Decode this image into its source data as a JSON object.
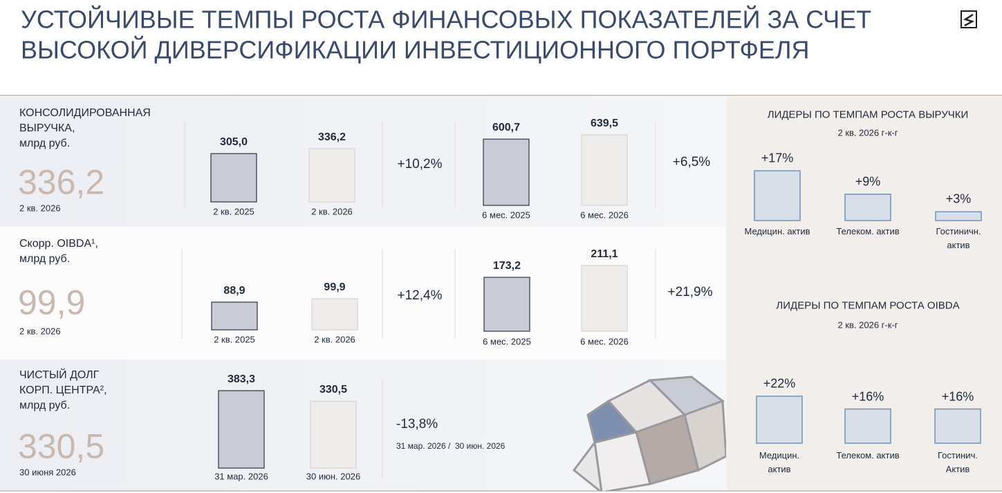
{
  "header": {
    "title_lines": [
      "УСТОЙЧИВЫЕ ТЕМПЫ РОСТА ФИНАНСОВЫХ ПОКАЗАТЕЛЕЙ ЗА СЧЕТ",
      "ВЫСОКОЙ ДИВЕРСИФИКАЦИИ ИНВЕСТИЦИОННОГО ПОРТФЕЛЯ"
    ]
  },
  "metrics": [
    {
      "label_lines": [
        "КОНСОЛИДИРОВАННАЯ",
        "ВЫРУЧКА,",
        "млрд руб."
      ],
      "value": "336,2",
      "period": "2 кв. 2026",
      "charts": [
        {
          "bars": [
            {
              "value": 305.0,
              "label": "305,0",
              "category": "2 кв. 2025"
            },
            {
              "value": 336.2,
              "label": "336,2",
              "category": "2 кв. 2026"
            }
          ],
          "change": "+10,2%"
        },
        {
          "bars": [
            {
              "value": 600.7,
              "label": "600,7",
              "category": "6 мес. 2025"
            },
            {
              "value": 639.5,
              "label": "639,5",
              "category": "6 мес. 2026"
            }
          ],
          "change": "+6,5%"
        }
      ]
    },
    {
      "label_lines": [
        "Скорр. OIBDA¹,",
        "млрд руб."
      ],
      "value": "99,9",
      "period": "2 кв. 2026",
      "charts": [
        {
          "bars": [
            {
              "value": 88.9,
              "label": "88,9",
              "category": "2 кв. 2025"
            },
            {
              "value": 99.9,
              "label": "99,9",
              "category": "2 кв. 2026"
            }
          ],
          "change": "+12,4%"
        },
        {
          "bars": [
            {
              "value": 173.2,
              "label": "173,2",
              "category": "6 мес. 2025"
            },
            {
              "value": 211.1,
              "label": "211,1",
              "category": "6 мес. 2026"
            }
          ],
          "change": "+21,9%"
        }
      ]
    },
    {
      "label_lines": [
        "ЧИСТЫЙ ДОЛГ",
        "КОРП. ЦЕНТРА²,",
        "млрд руб."
      ],
      "value": "330,5",
      "period": "30 июня 2026",
      "charts": [
        {
          "bars": [
            {
              "value": 383.3,
              "label": "383,3",
              "category": "31 мар. 2026"
            },
            {
              "value": 330.5,
              "label": "330,5",
              "category": "30 июн. 2026"
            }
          ],
          "change": "-13,8%",
          "note": "31 мар. 2026 /  30 июн. 2026"
        }
      ]
    }
  ],
  "leaders": [
    {
      "title": "ЛИДЕРЫ ПО ТЕМПАМ РОСТА ВЫРУЧКИ",
      "subtitle": "2 кв. 2026 г-к-г",
      "bars": [
        {
          "value": 17,
          "label": "+17%",
          "category": "Медицин. актив"
        },
        {
          "value": 9,
          "label": "+9%",
          "category": "Телеком. актив"
        },
        {
          "value": 3,
          "label": "+3%",
          "category": "Гостиничн. актив"
        }
      ]
    },
    {
      "title": "ЛИДЕРЫ ПО ТЕМПАМ РОСТА OIBDA",
      "subtitle": "2 кв. 2026 г-к-г",
      "bars": [
        {
          "value": 22,
          "label": "+22%",
          "category": "Медицин.\nактив"
        },
        {
          "value": 16,
          "label": "+16%",
          "category": "Телеком. актив"
        },
        {
          "value": 16,
          "label": "+16%",
          "category": "Гостинич. Актив"
        }
      ]
    }
  ]
}
